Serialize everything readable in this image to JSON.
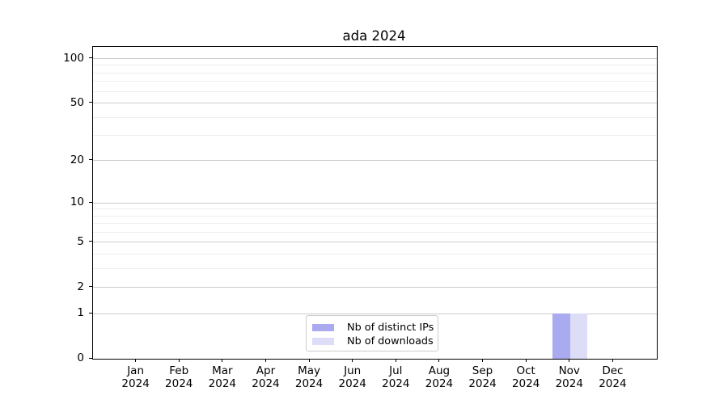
{
  "chart_data": {
    "type": "bar",
    "title": "ada 2024",
    "categories": [
      "Jan 2024",
      "Feb 2024",
      "Mar 2024",
      "Apr 2024",
      "May 2024",
      "Jun 2024",
      "Jul 2024",
      "Aug 2024",
      "Sep 2024",
      "Oct 2024",
      "Nov 2024",
      "Dec 2024"
    ],
    "series": [
      {
        "name": "Nb of distinct IPs",
        "color": "#aaaaf0",
        "values": [
          0,
          0,
          0,
          0,
          0,
          0,
          0,
          0,
          0,
          0,
          1,
          0
        ]
      },
      {
        "name": "Nb of downloads",
        "color": "#ddddf8",
        "values": [
          0,
          0,
          0,
          0,
          0,
          0,
          0,
          0,
          0,
          0,
          1,
          0
        ]
      }
    ],
    "xlabel": "",
    "ylabel": "",
    "yscale": "log1p",
    "ylim": [
      0,
      120
    ],
    "yticks": [
      0,
      1,
      2,
      5,
      10,
      20,
      50,
      100
    ],
    "minor_yticks": [
      3,
      4,
      6,
      7,
      8,
      9,
      30,
      40,
      60,
      70,
      80,
      90
    ],
    "grid": true,
    "legend_position": "bottom-center",
    "colors": {
      "axis": "#000000",
      "grid_major": "#cccccc",
      "grid_minor": "#efefef",
      "legend_border": "#cccccc"
    }
  }
}
